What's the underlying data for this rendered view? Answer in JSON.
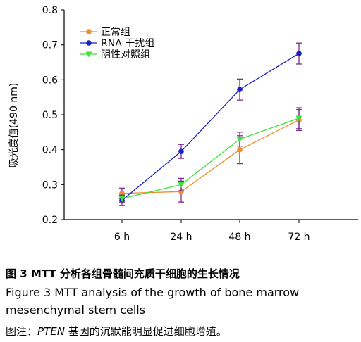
{
  "chart_data": {
    "type": "line",
    "ylabel": "吸光度值(490 nm)",
    "xlabel": "",
    "ylim": [
      0.2,
      0.8
    ],
    "yticks": [
      "0.2",
      "0.3",
      "0.4",
      "0.5",
      "0.6",
      "0.7",
      "0.8"
    ],
    "categories": [
      "6 h",
      "24 h",
      "48 h",
      "72 h"
    ],
    "legend_position": "top-left",
    "series": [
      {
        "name": "正常组",
        "color": "#f28c28",
        "marker": "circle",
        "values": [
          0.275,
          0.28,
          0.4,
          0.485
        ],
        "errors": [
          0.015,
          0.03,
          0.04,
          0.03
        ]
      },
      {
        "name": "RNA 干扰组",
        "color": "#1a1fc9",
        "marker": "circle",
        "values": [
          0.255,
          0.395,
          0.572,
          0.675
        ],
        "errors": [
          0.015,
          0.02,
          0.03,
          0.03
        ]
      },
      {
        "name": "阴性对照组",
        "color": "#3be23b",
        "marker": "triangle-down",
        "values": [
          0.26,
          0.3,
          0.43,
          0.49
        ],
        "errors": [
          0.01,
          0.018,
          0.02,
          0.03
        ]
      }
    ]
  },
  "caption": {
    "zh_title": "图 3   MTT 分析各组骨髓间充质干细胞的生长情况",
    "en_title_line1": "Figure 3    MTT analysis of the growth of bone marrow",
    "en_title_line2": "mesenchymal stem cells",
    "note_prefix": "图注：",
    "note_gene": "PTEN",
    "note_rest": " 基因的沉默能明显促进细胞增殖。"
  }
}
